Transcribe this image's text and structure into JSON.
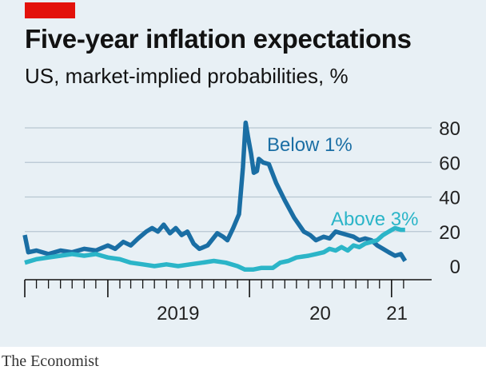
{
  "colors": {
    "background": "#e8f0f5",
    "tag": "#e3120b",
    "gridline": "#b7c6d1",
    "axis": "#121212"
  },
  "footer": {
    "source": "The Economist"
  },
  "chart_data": {
    "type": "line",
    "title": "Five-year inflation expectations",
    "subtitle": "US, market-implied probabilities, %",
    "xlabel": "",
    "ylabel": "",
    "y_axis_side": "right",
    "xlim": [
      "2018-06-01",
      "2021-02-28"
    ],
    "ylim": [
      0,
      80
    ],
    "yticks": [
      0,
      20,
      40,
      60,
      80
    ],
    "xtick_labels": [
      {
        "label": "2019",
        "date": "2019-07-01"
      },
      {
        "label": "20",
        "date": "2020-07-01"
      },
      {
        "label": "21",
        "date": "2021-01-15"
      }
    ],
    "grid": true,
    "series": [
      {
        "name": "Below 1%",
        "color": "#1a6ea4",
        "points": [
          [
            "2018-06-01",
            18
          ],
          [
            "2018-06-10",
            8
          ],
          [
            "2018-07-01",
            9
          ],
          [
            "2018-08-01",
            7
          ],
          [
            "2018-09-01",
            9
          ],
          [
            "2018-10-01",
            8
          ],
          [
            "2018-11-01",
            10
          ],
          [
            "2018-12-01",
            9
          ],
          [
            "2019-01-01",
            12
          ],
          [
            "2019-01-20",
            10
          ],
          [
            "2019-02-10",
            14
          ],
          [
            "2019-03-01",
            12
          ],
          [
            "2019-03-20",
            16
          ],
          [
            "2019-04-10",
            20
          ],
          [
            "2019-04-25",
            22
          ],
          [
            "2019-05-10",
            20
          ],
          [
            "2019-05-25",
            24
          ],
          [
            "2019-06-10",
            19
          ],
          [
            "2019-06-25",
            22
          ],
          [
            "2019-07-10",
            18
          ],
          [
            "2019-07-25",
            20
          ],
          [
            "2019-08-10",
            13
          ],
          [
            "2019-08-25",
            10
          ],
          [
            "2019-09-15",
            12
          ],
          [
            "2019-10-10",
            19
          ],
          [
            "2019-10-25",
            17
          ],
          [
            "2019-11-05",
            15
          ],
          [
            "2019-11-20",
            22
          ],
          [
            "2019-12-05",
            30
          ],
          [
            "2019-12-15",
            57
          ],
          [
            "2019-12-22",
            83
          ],
          [
            "2019-12-28",
            75
          ],
          [
            "2020-01-05",
            65
          ],
          [
            "2020-01-12",
            54
          ],
          [
            "2020-01-20",
            55
          ],
          [
            "2020-01-25",
            62
          ],
          [
            "2020-02-05",
            60
          ],
          [
            "2020-02-20",
            59
          ],
          [
            "2020-03-10",
            48
          ],
          [
            "2020-04-01",
            38
          ],
          [
            "2020-04-25",
            28
          ],
          [
            "2020-05-20",
            20
          ],
          [
            "2020-06-05",
            18
          ],
          [
            "2020-06-20",
            15
          ],
          [
            "2020-07-10",
            17
          ],
          [
            "2020-07-25",
            16
          ],
          [
            "2020-08-10",
            20
          ],
          [
            "2020-08-25",
            19
          ],
          [
            "2020-09-10",
            18
          ],
          [
            "2020-09-25",
            17
          ],
          [
            "2020-10-10",
            15
          ],
          [
            "2020-10-25",
            16
          ],
          [
            "2020-11-10",
            15
          ],
          [
            "2020-11-25",
            12
          ],
          [
            "2020-12-10",
            10
          ],
          [
            "2020-12-25",
            8
          ],
          [
            "2021-01-10",
            6
          ],
          [
            "2021-01-25",
            7
          ],
          [
            "2021-02-05",
            3
          ]
        ]
      },
      {
        "name": "Above 3%",
        "color": "#2bb5c8",
        "points": [
          [
            "2018-06-01",
            2
          ],
          [
            "2018-07-01",
            4
          ],
          [
            "2018-08-01",
            5
          ],
          [
            "2018-09-01",
            6
          ],
          [
            "2018-10-01",
            7
          ],
          [
            "2018-11-01",
            6
          ],
          [
            "2018-12-01",
            7
          ],
          [
            "2019-01-01",
            5
          ],
          [
            "2019-02-01",
            4
          ],
          [
            "2019-03-01",
            2
          ],
          [
            "2019-04-01",
            1
          ],
          [
            "2019-05-01",
            0
          ],
          [
            "2019-06-01",
            1
          ],
          [
            "2019-07-01",
            0
          ],
          [
            "2019-08-01",
            1
          ],
          [
            "2019-09-01",
            2
          ],
          [
            "2019-10-01",
            3
          ],
          [
            "2019-11-01",
            2
          ],
          [
            "2019-12-01",
            0
          ],
          [
            "2019-12-20",
            -2
          ],
          [
            "2020-01-10",
            -2
          ],
          [
            "2020-02-01",
            -1
          ],
          [
            "2020-03-01",
            -1
          ],
          [
            "2020-03-20",
            2
          ],
          [
            "2020-04-10",
            3
          ],
          [
            "2020-05-01",
            5
          ],
          [
            "2020-06-01",
            6
          ],
          [
            "2020-06-20",
            7
          ],
          [
            "2020-07-10",
            8
          ],
          [
            "2020-07-25",
            10
          ],
          [
            "2020-08-10",
            9
          ],
          [
            "2020-08-25",
            11
          ],
          [
            "2020-09-10",
            9
          ],
          [
            "2020-09-25",
            12
          ],
          [
            "2020-10-10",
            11
          ],
          [
            "2020-10-25",
            13
          ],
          [
            "2020-11-10",
            14
          ],
          [
            "2020-11-25",
            15
          ],
          [
            "2020-12-10",
            18
          ],
          [
            "2020-12-25",
            20
          ],
          [
            "2021-01-10",
            22
          ],
          [
            "2021-01-25",
            21
          ],
          [
            "2021-02-05",
            21
          ]
        ]
      }
    ]
  }
}
